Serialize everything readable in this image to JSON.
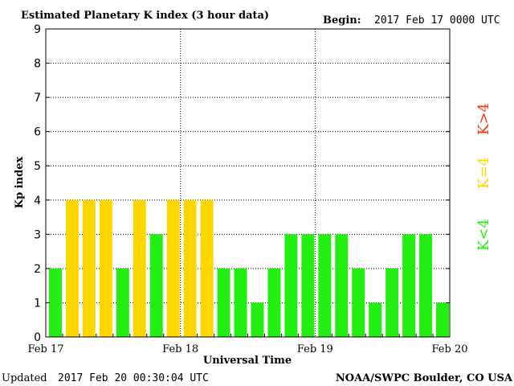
{
  "header": {
    "title": "Estimated Planetary K index (3 hour data)",
    "begin_label": "Begin:",
    "begin_value": "2017 Feb 17 0000 UTC"
  },
  "footer": {
    "updated_label": "Updated",
    "updated_value": "2017 Feb 20 00:30:04 UTC",
    "credit": "NOAA/SWPC Boulder, CO USA"
  },
  "legend": {
    "greater": "K>4",
    "equal": "K=4",
    "less": "K<4"
  },
  "colors": {
    "below4": "#22ee11",
    "equal4": "#ffd700",
    "above4": "#ff3311"
  },
  "chart_data": {
    "type": "bar",
    "title": "Estimated Planetary K index (3 hour data)",
    "xlabel": "Universal Time",
    "ylabel": "Kp index",
    "ylim": [
      0,
      9
    ],
    "yticks": [
      0,
      1,
      2,
      3,
      4,
      5,
      6,
      7,
      8,
      9
    ],
    "xticks": [
      "Feb 17",
      "Feb 18",
      "Feb 19",
      "Feb 20"
    ],
    "grid": true,
    "interval_hours": 3,
    "values": [
      2,
      4,
      4,
      4,
      2,
      4,
      3,
      4,
      4,
      4,
      2,
      2,
      1,
      2,
      3,
      3,
      3,
      3,
      2,
      1,
      2,
      3,
      3,
      1
    ]
  }
}
